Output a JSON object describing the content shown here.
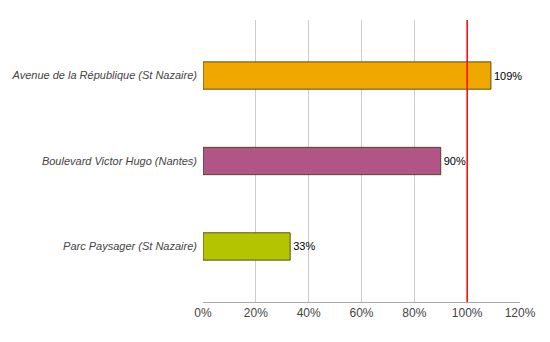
{
  "chart_data": {
    "type": "bar",
    "orientation": "horizontal",
    "categories": [
      "Parc Paysager (St Nazaire)",
      "Boulevard Victor Hugo (Nantes)",
      "Avenue de la République (St Nazaire)"
    ],
    "values": [
      33,
      90,
      109
    ],
    "value_labels": [
      "33%",
      "90%",
      "109%"
    ],
    "data_labels": true,
    "colors": [
      "#b5c400",
      "#b05585",
      "#f0a800"
    ],
    "xlim": [
      0,
      120
    ],
    "xticks": [
      {
        "value": 0,
        "label": "0%"
      },
      {
        "value": 20,
        "label": "20%"
      },
      {
        "value": 40,
        "label": "40%"
      },
      {
        "value": 60,
        "label": "60%"
      },
      {
        "value": 80,
        "label": "80%"
      },
      {
        "value": 100,
        "label": "100%"
      },
      {
        "value": 120,
        "label": "120%"
      }
    ],
    "grid": true,
    "reference_line": {
      "x": 100,
      "color": "#ff0000"
    }
  }
}
